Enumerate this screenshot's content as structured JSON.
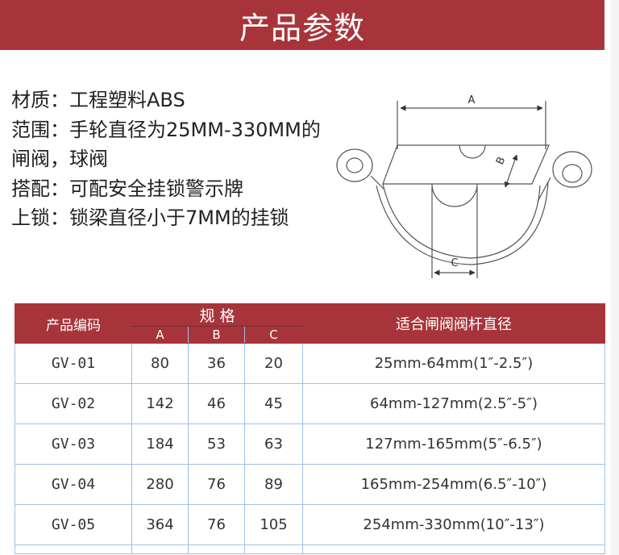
{
  "title": "产品参数",
  "specs": [
    "材质：工程塑料ABS",
    "范围：手轮直径为25MM-330MM的",
    "闸阀，球阀",
    "搭配：可配安全挂锁警示牌",
    "上锁：锁梁直径小于7MM的挂锁"
  ],
  "diagram": {
    "label_a": "A",
    "label_b": "B",
    "label_c": "C"
  },
  "table": {
    "headers": {
      "code": "产品编码",
      "spec": "规 格",
      "a": "A",
      "b": "B",
      "c": "C",
      "range": "适合闸阀阀杆直径"
    },
    "rows": [
      {
        "code": "GV-01",
        "a": "80",
        "b": "36",
        "c": "20",
        "range": "25mm-64mm(1″-2.5″)"
      },
      {
        "code": "GV-02",
        "a": "142",
        "b": "46",
        "c": "45",
        "range": "64mm-127mm(2.5″-5″)"
      },
      {
        "code": "GV-03",
        "a": "184",
        "b": "53",
        "c": "63",
        "range": "127mm-165mm(5″-6.5″)"
      },
      {
        "code": "GV-04",
        "a": "280",
        "b": "76",
        "c": "89",
        "range": "165mm-254mm(6.5″-10″)"
      },
      {
        "code": "GV-05",
        "a": "364",
        "b": "76",
        "c": "105",
        "range": "254mm-330mm(10″-13″)"
      }
    ]
  },
  "colors": {
    "accent": "#a8343b",
    "grid": "#9cc3ea"
  }
}
